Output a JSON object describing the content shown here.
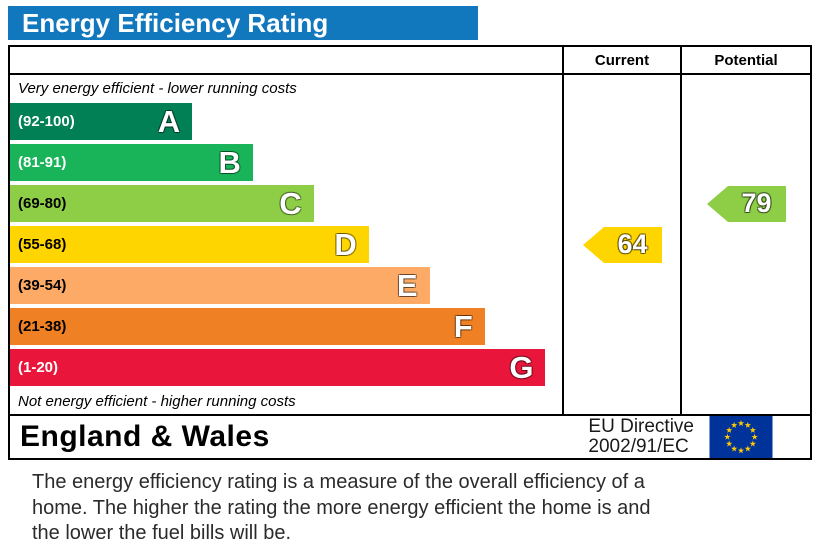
{
  "title": "Energy Efficiency Rating",
  "columns": {
    "current": "Current",
    "potential": "Potential"
  },
  "top_note": "Very energy efficient - lower running costs",
  "bottom_note": "Not energy efficient - higher running costs",
  "colors": {
    "title_bar": "#1278be",
    "flag_bg": "#003399",
    "flag_stars": "#ffcc00"
  },
  "chart_data": {
    "type": "bar",
    "orientation": "horizontal",
    "title": "Energy Efficiency Rating",
    "bands": [
      {
        "letter": "A",
        "range": "(92-100)",
        "min": 92,
        "max": 100,
        "color": "#008054",
        "range_color": "#ffffff",
        "width_pct": 33
      },
      {
        "letter": "B",
        "range": "(81-91)",
        "min": 81,
        "max": 91,
        "color": "#19b459",
        "range_color": "#ffffff",
        "width_pct": 44
      },
      {
        "letter": "C",
        "range": "(69-80)",
        "min": 69,
        "max": 80,
        "color": "#8dce46",
        "range_color": "#000000",
        "width_pct": 55
      },
      {
        "letter": "D",
        "range": "(55-68)",
        "min": 55,
        "max": 68,
        "color": "#ffd500",
        "range_color": "#000000",
        "width_pct": 65
      },
      {
        "letter": "E",
        "range": "(39-54)",
        "min": 39,
        "max": 54,
        "color": "#fcaa65",
        "range_color": "#000000",
        "width_pct": 76
      },
      {
        "letter": "F",
        "range": "(21-38)",
        "min": 21,
        "max": 38,
        "color": "#ef8023",
        "range_color": "#000000",
        "width_pct": 86
      },
      {
        "letter": "G",
        "range": "(1-20)",
        "min": 1,
        "max": 20,
        "color": "#e9153b",
        "range_color": "#ffffff",
        "width_pct": 97
      }
    ],
    "current": {
      "value": 64,
      "band": "D",
      "color": "#ffd500"
    },
    "potential": {
      "value": 79,
      "band": "C",
      "color": "#8dce46"
    }
  },
  "footer": {
    "region": "England & Wales",
    "directive_line1": "EU Directive",
    "directive_line2": "2002/91/EC"
  },
  "description": "The energy efficiency rating is a measure of the overall efficiency of a home.  The higher the rating the more energy efficient the home is and the lower the fuel bills will be."
}
